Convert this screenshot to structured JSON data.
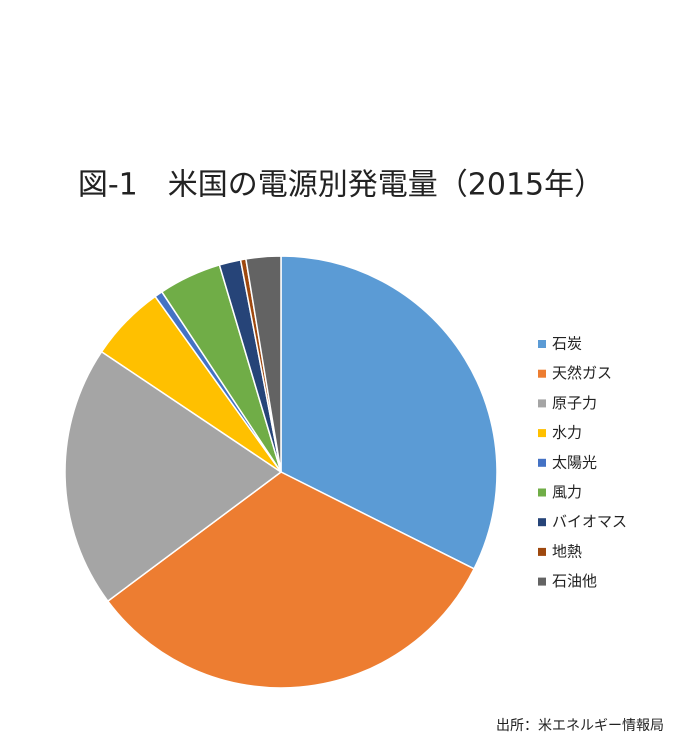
{
  "chart_data": {
    "type": "pie",
    "title": "図-1　米国の電源別発電量（2015年）",
    "categories": [
      "石炭",
      "天然ガス",
      "原子力",
      "水力",
      "太陽光",
      "風力",
      "バイオマス",
      "地熱",
      "石油他"
    ],
    "values": [
      32.4,
      32.4,
      19.6,
      5.7,
      0.6,
      4.7,
      1.6,
      0.4,
      2.6
    ],
    "colors": [
      "#5b9bd5",
      "#ed7d31",
      "#a5a5a5",
      "#ffc000",
      "#4472c4",
      "#70ad47",
      "#264478",
      "#9e480e",
      "#636363"
    ],
    "legend": "right",
    "source": "出所：米エネルギー情報局"
  }
}
